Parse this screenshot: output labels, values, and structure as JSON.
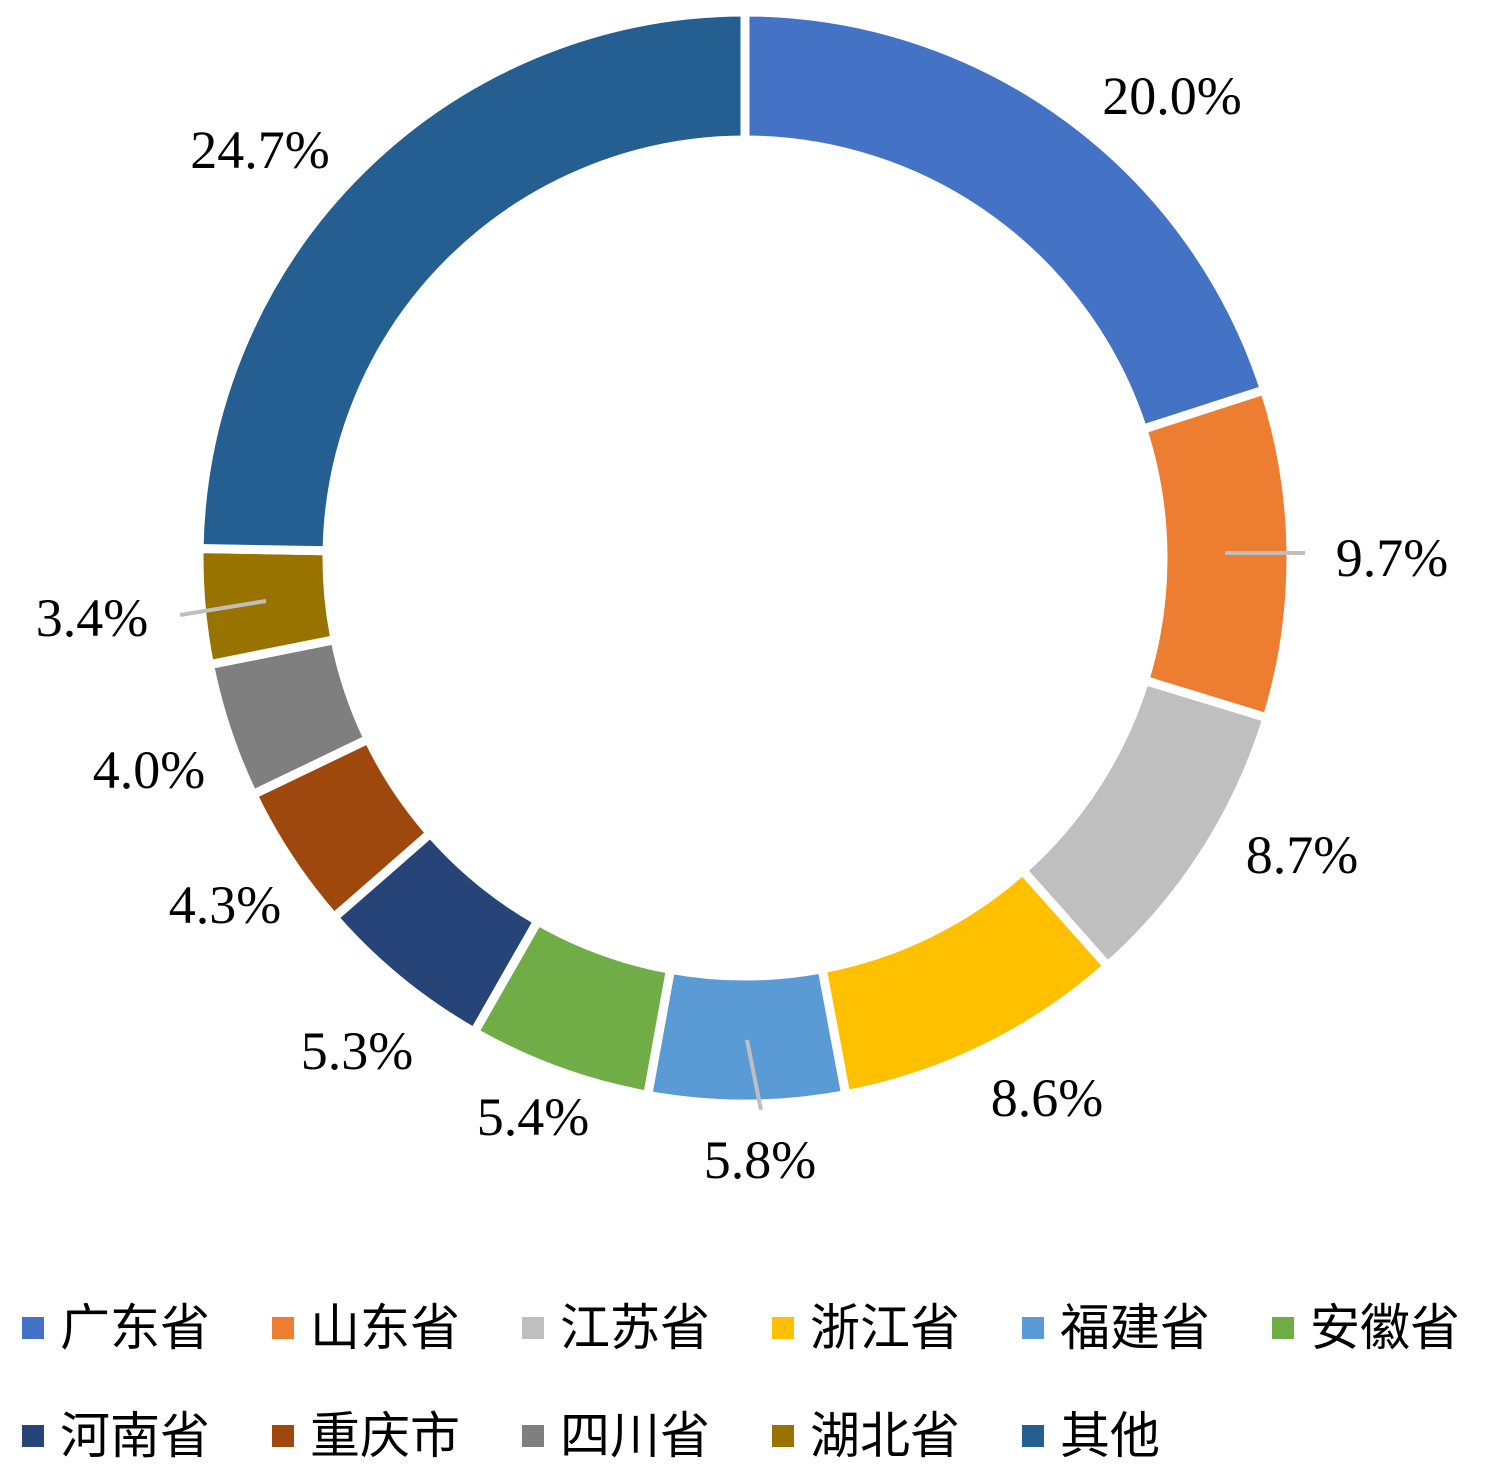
{
  "chart_data": {
    "type": "pie",
    "variant": "donut",
    "title": "",
    "legend_position": "bottom",
    "series": [
      {
        "name": "广东省",
        "value": 20.0,
        "label": "20.0%",
        "color": "#4472C4"
      },
      {
        "name": "山东省",
        "value": 9.7,
        "label": "9.7%",
        "color": "#ED7D31"
      },
      {
        "name": "江苏省",
        "value": 8.7,
        "label": "8.7%",
        "color": "#BFBFBF"
      },
      {
        "name": "浙江省",
        "value": 8.6,
        "label": "8.6%",
        "color": "#FFC000"
      },
      {
        "name": "福建省",
        "value": 5.8,
        "label": "5.8%",
        "color": "#5B9BD5"
      },
      {
        "name": "安徽省",
        "value": 5.4,
        "label": "5.4%",
        "color": "#70AD47"
      },
      {
        "name": "河南省",
        "value": 5.3,
        "label": "5.3%",
        "color": "#264478"
      },
      {
        "name": "重庆市",
        "value": 4.3,
        "label": "4.3%",
        "color": "#9E480E"
      },
      {
        "name": "四川省",
        "value": 4.0,
        "label": "4.0%",
        "color": "#7F7F7F"
      },
      {
        "name": "湖北省",
        "value": 3.4,
        "label": "3.4%",
        "color": "#997300"
      },
      {
        "name": "其他",
        "value": 24.7,
        "label": "24.7%",
        "color": "#255E91"
      }
    ]
  }
}
